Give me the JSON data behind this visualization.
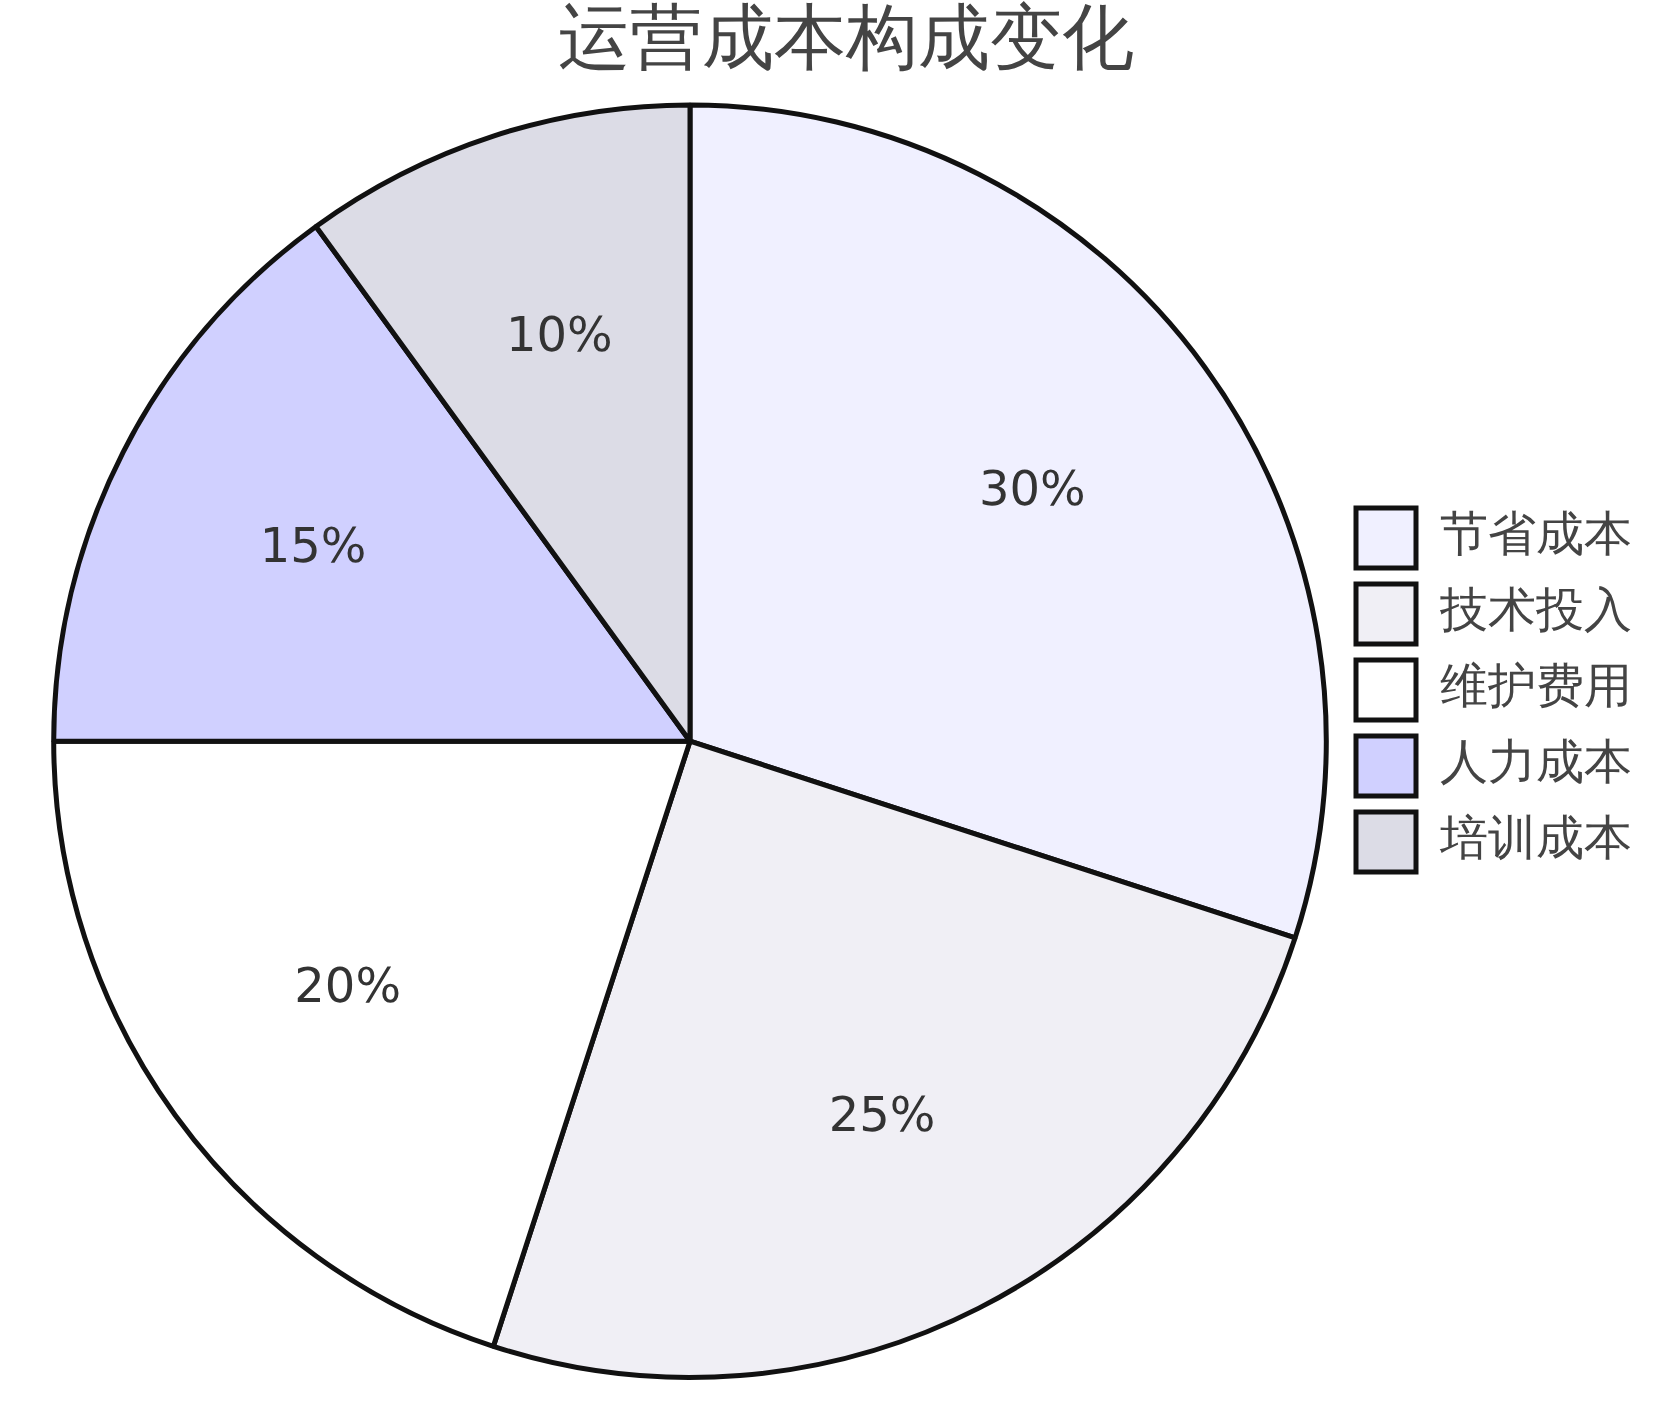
{
  "chart_data": {
    "type": "pie",
    "title": "运营成本构成变化",
    "categories": [
      "节省成本",
      "技术投入",
      "维护费用",
      "人力成本",
      "培训成本"
    ],
    "values": [
      30,
      25,
      20,
      15,
      10
    ],
    "colors": [
      "#f0f0ff",
      "#f0eff5",
      "#ffffff",
      "#d0d0ff",
      "#dcdce6"
    ],
    "value_labels": [
      "30%",
      "25%",
      "20%",
      "15%",
      "10%"
    ],
    "legend": "right"
  }
}
